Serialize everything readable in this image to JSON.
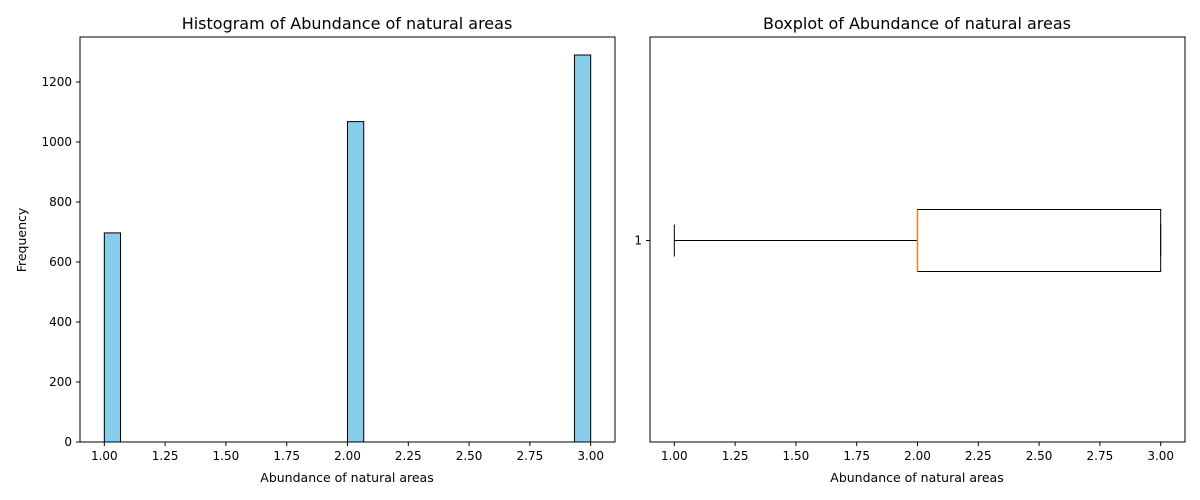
{
  "chart_data": [
    {
      "type": "bar",
      "title": "Histogram of Abundance of natural areas",
      "xlabel": "Abundance of natural areas",
      "ylabel": "Frequency",
      "xlim": [
        0.9,
        3.1
      ],
      "ylim": [
        0,
        1350
      ],
      "xticks": [
        "1.00",
        "1.25",
        "1.50",
        "1.75",
        "2.00",
        "2.25",
        "2.50",
        "2.75",
        "3.00"
      ],
      "yticks": [
        "0",
        "200",
        "400",
        "600",
        "800",
        "1000",
        "1200"
      ],
      "bins": [
        {
          "start": 1.0,
          "end": 1.0667,
          "count": 697
        },
        {
          "start": 2.0,
          "end": 2.0667,
          "count": 1068
        },
        {
          "start": 2.9333,
          "end": 3.0,
          "count": 1290
        }
      ],
      "bar_color": "#87ceeb",
      "edge_color": "#000000",
      "grid": false
    },
    {
      "type": "boxplot",
      "title": "Boxplot of Abundance of natural areas",
      "xlabel": "Abundance of natural areas",
      "ylabel": "",
      "xlim": [
        0.9,
        3.1
      ],
      "xticks": [
        "1.00",
        "1.25",
        "1.50",
        "1.75",
        "2.00",
        "2.25",
        "2.50",
        "2.75",
        "3.00"
      ],
      "ytick": "1",
      "stats": {
        "whisker_low": 1.0,
        "q1": 2.0,
        "median": 2.0,
        "q3": 3.0,
        "whisker_high": 3.0
      },
      "median_color": "#ff7f0e",
      "grid": false
    }
  ]
}
